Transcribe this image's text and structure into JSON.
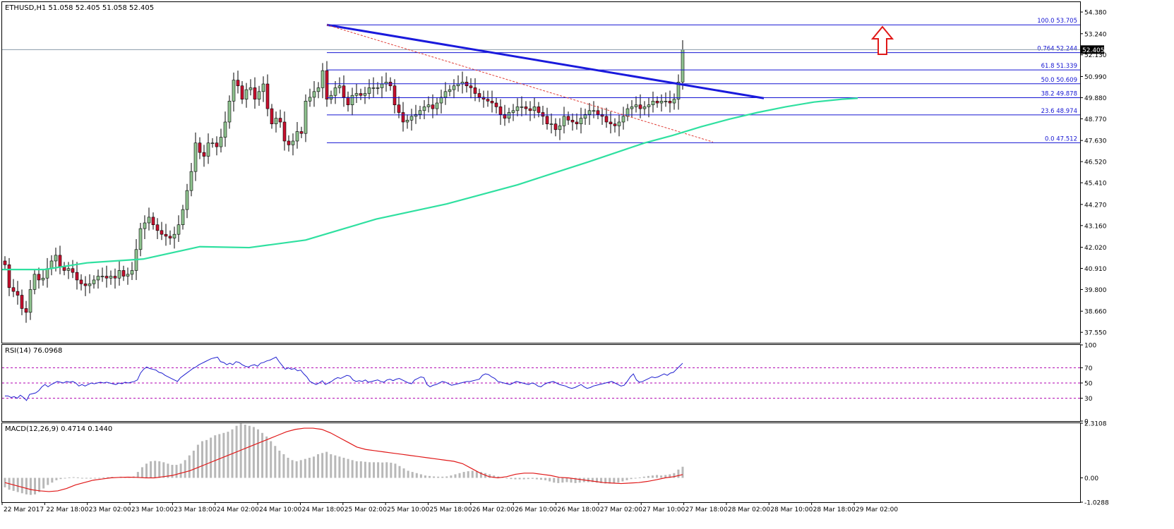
{
  "colors": {
    "background": "#ffffff",
    "frame": "#000000",
    "bull_candle": "#90c490",
    "bear_candle": "#c8102e",
    "ma_line": "#2fe0a0",
    "fib_line": "#1414d2",
    "trendline": "#1a1adc",
    "dashed_trend": "#e0403a",
    "arrow": "#e01818",
    "rsi_line": "#1f1fd0",
    "rsi_levels": "#b000b0",
    "macd_hist": "#b8b8b8",
    "macd_signal": "#e01818",
    "price_tag_bg": "#000000",
    "price_tag_text": "#ffffff"
  },
  "chart_data": [
    {
      "type": "candlestick",
      "title": "ETHUSD,H1  51.058 52.405 51.058 52.405",
      "ylim": [
        37.0,
        54.9
      ],
      "y_ticks": [
        "54.380",
        "53.240",
        "52.130",
        "50.990",
        "49.880",
        "48.770",
        "47.630",
        "46.520",
        "45.410",
        "44.270",
        "43.160",
        "42.020",
        "40.910",
        "39.800",
        "38.660",
        "37.550"
      ],
      "x_ticks": [
        "22 Mar 2017",
        "22 Mar 18:00",
        "23 Mar 02:00",
        "23 Mar 10:00",
        "23 Mar 18:00",
        "24 Mar 02:00",
        "24 Mar 10:00",
        "24 Mar 18:00",
        "25 Mar 02:00",
        "25 Mar 10:00",
        "25 Mar 18:00",
        "26 Mar 02:00",
        "26 Mar 10:00",
        "26 Mar 18:00",
        "27 Mar 02:00",
        "27 Mar 10:00",
        "27 Mar 18:00",
        "28 Mar 02:00",
        "28 Mar 10:00",
        "28 Mar 18:00",
        "29 Mar 02:00"
      ],
      "current_price": "52.405",
      "close_series": [
        41.1,
        39.9,
        39.7,
        39.5,
        38.8,
        38.6,
        39.8,
        40.6,
        40.3,
        40.4,
        40.9,
        41.3,
        41.6,
        41.0,
        40.8,
        40.9,
        40.7,
        40.3,
        40.1,
        40.0,
        40.1,
        40.3,
        40.5,
        40.5,
        40.4,
        40.5,
        40.4,
        40.8,
        40.5,
        40.6,
        40.8,
        41.9,
        43.0,
        43.3,
        43.6,
        43.2,
        42.9,
        42.7,
        42.6,
        42.5,
        42.7,
        43.2,
        44.0,
        45.0,
        46.0,
        47.5,
        47.0,
        46.8,
        47.5,
        47.5,
        47.3,
        47.8,
        48.6,
        49.7,
        50.8,
        50.5,
        49.8,
        50.3,
        50.4,
        49.8,
        50.2,
        50.6,
        49.3,
        48.5,
        48.8,
        48.6,
        47.6,
        47.4,
        47.6,
        48.1,
        48.0,
        49.7,
        49.9,
        50.2,
        50.4,
        51.3,
        49.8,
        50.0,
        50.4,
        50.5,
        49.9,
        49.5,
        50.0,
        50.1,
        50.0,
        50.1,
        50.4,
        50.4,
        50.4,
        50.6,
        50.7,
        50.5,
        49.5,
        49.1,
        48.6,
        48.7,
        48.9,
        49.0,
        49.2,
        49.4,
        49.5,
        49.3,
        49.6,
        49.9,
        50.2,
        50.3,
        50.5,
        50.6,
        50.7,
        50.5,
        50.4,
        50.1,
        49.9,
        49.8,
        49.7,
        49.6,
        49.4,
        49.0,
        48.8,
        49.1,
        49.2,
        49.4,
        49.4,
        49.3,
        49.2,
        49.4,
        49.1,
        48.9,
        48.5,
        48.5,
        48.2,
        48.4,
        48.9,
        48.7,
        48.6,
        48.5,
        48.8,
        49.0,
        49.2,
        49.2,
        49.0,
        48.9,
        48.6,
        48.5,
        48.4,
        48.6,
        48.9,
        49.3,
        49.4,
        49.5,
        49.3,
        49.4,
        49.5,
        49.7,
        49.6,
        49.7,
        49.7,
        49.6,
        49.8,
        50.7,
        52.4
      ],
      "ma_line": [
        [
          0,
          40.85
        ],
        [
          60,
          40.85
        ],
        [
          120,
          41.2
        ],
        [
          200,
          41.4
        ],
        [
          280,
          42.05
        ],
        [
          350,
          42.0
        ],
        [
          430,
          42.4
        ],
        [
          480,
          42.95
        ],
        [
          530,
          43.5
        ],
        [
          580,
          43.9
        ],
        [
          630,
          44.3
        ],
        [
          680,
          44.8
        ],
        [
          730,
          45.3
        ],
        [
          780,
          45.9
        ],
        [
          830,
          46.5
        ],
        [
          870,
          47.0
        ],
        [
          910,
          47.5
        ],
        [
          950,
          47.9
        ],
        [
          990,
          48.35
        ],
        [
          1030,
          48.75
        ],
        [
          1070,
          49.1
        ],
        [
          1110,
          49.4
        ],
        [
          1150,
          49.65
        ],
        [
          1190,
          49.8
        ],
        [
          1212,
          49.85
        ]
      ],
      "fibonacci": [
        {
          "level_label": "100.0",
          "price_label": "53.705",
          "price": 53.705
        },
        {
          "level_label": "0.764",
          "price_label": "52.244",
          "price": 52.244
        },
        {
          "level_label": "61.8",
          "price_label": "51.339",
          "price": 51.339
        },
        {
          "level_label": "50.0",
          "price_label": "50.609",
          "price": 50.609
        },
        {
          "level_label": "38.2",
          "price_label": "49.878",
          "price": 49.878
        },
        {
          "level_label": "23.6",
          "price_label": "48.974",
          "price": 48.974
        },
        {
          "level_label": "0.0",
          "price_label": "47.512",
          "price": 47.512
        }
      ],
      "trendline": {
        "from_price": 53.705,
        "to_price": 49.85
      },
      "dashed_trend": {
        "from_price": 53.705,
        "to_price": 47.55
      },
      "annotation": "upward arrow (bullish breakout)"
    },
    {
      "type": "line",
      "title": "RSI(14) 76.0968",
      "ylim": [
        0,
        100
      ],
      "y_ticks": [
        "100",
        "70",
        "50",
        "30",
        "0"
      ],
      "levels": [
        70,
        50,
        30
      ],
      "values": [
        33,
        33,
        31,
        32,
        30,
        34,
        31,
        27,
        35,
        36,
        37,
        40,
        45,
        48,
        45,
        48,
        50,
        52,
        51,
        50,
        52,
        51,
        52,
        50,
        46,
        48,
        46,
        48,
        50,
        49,
        50,
        51,
        50,
        51,
        50,
        49,
        48,
        50,
        49,
        51,
        50,
        51,
        52,
        54,
        63,
        68,
        71,
        69,
        68,
        67,
        64,
        63,
        60,
        58,
        56,
        54,
        52,
        57,
        60,
        63,
        66,
        69,
        71,
        74,
        76,
        78,
        80,
        82,
        83,
        84,
        78,
        77,
        74,
        76,
        74,
        78,
        77,
        74,
        72,
        71,
        73,
        74,
        72,
        76,
        77,
        79,
        80,
        82,
        84,
        78,
        73,
        68,
        70,
        68,
        69,
        66,
        67,
        62,
        58,
        52,
        50,
        48,
        50,
        53,
        48,
        50,
        52,
        55,
        57,
        56,
        58,
        60,
        59,
        54,
        52,
        53,
        52,
        54,
        51,
        52,
        53,
        54,
        52,
        51,
        54,
        55,
        53,
        55,
        56,
        54,
        52,
        50,
        49,
        54,
        56,
        58,
        57,
        48,
        45,
        47,
        48,
        50,
        52,
        51,
        49,
        47,
        48,
        49,
        50,
        51,
        52,
        52,
        53,
        54,
        55,
        60,
        62,
        61,
        58,
        56,
        52,
        51,
        50,
        49,
        48,
        50,
        52,
        51,
        50,
        49,
        48,
        50,
        49,
        46,
        45,
        48,
        50,
        51,
        52,
        50,
        48,
        47,
        46,
        44,
        43,
        44,
        46,
        48,
        45,
        43,
        44,
        46,
        47,
        48,
        49,
        50,
        51,
        52,
        50,
        48,
        46,
        47,
        52,
        58,
        62,
        54,
        51,
        52,
        54,
        56,
        58,
        57,
        58,
        60,
        62,
        60,
        63,
        64,
        68,
        72,
        76
      ]
    },
    {
      "type": "bar",
      "title": "MACD(12,26,9) 0.4714 0.1440",
      "ylim": [
        -1.0288,
        2.3108
      ],
      "y_ticks": [
        "2.3108",
        "0.00",
        "-1.0288"
      ],
      "histogram": [
        -0.4,
        -0.5,
        -0.55,
        -0.6,
        -0.65,
        -0.7,
        -0.72,
        -0.7,
        -0.6,
        -0.45,
        -0.3,
        -0.2,
        -0.1,
        -0.05,
        0.0,
        0.02,
        0.03,
        0.02,
        0.0,
        -0.02,
        -0.03,
        -0.02,
        0.0,
        0.02,
        0.03,
        0.04,
        0.03,
        0.05,
        0.03,
        0.04,
        0.06,
        0.25,
        0.45,
        0.6,
        0.7,
        0.72,
        0.7,
        0.66,
        0.6,
        0.55,
        0.55,
        0.6,
        0.75,
        0.95,
        1.15,
        1.4,
        1.55,
        1.6,
        1.7,
        1.8,
        1.85,
        1.9,
        1.95,
        2.05,
        2.2,
        2.3,
        2.25,
        2.2,
        2.15,
        2.05,
        1.9,
        1.75,
        1.55,
        1.35,
        1.15,
        1.0,
        0.85,
        0.75,
        0.7,
        0.75,
        0.8,
        0.85,
        0.9,
        1.0,
        1.05,
        1.1,
        1.0,
        0.95,
        0.9,
        0.85,
        0.8,
        0.75,
        0.7,
        0.7,
        0.68,
        0.66,
        0.66,
        0.66,
        0.65,
        0.66,
        0.64,
        0.6,
        0.5,
        0.4,
        0.3,
        0.25,
        0.2,
        0.15,
        0.1,
        0.08,
        0.06,
        0.05,
        0.05,
        0.06,
        0.1,
        0.15,
        0.2,
        0.25,
        0.28,
        0.3,
        0.28,
        0.25,
        0.2,
        0.15,
        0.1,
        0.06,
        0.03,
        0.0,
        -0.05,
        -0.06,
        -0.06,
        -0.06,
        -0.05,
        -0.04,
        -0.06,
        -0.08,
        -0.1,
        -0.15,
        -0.2,
        -0.22,
        -0.2,
        -0.18,
        -0.2,
        -0.22,
        -0.2,
        -0.18,
        -0.18,
        -0.18,
        -0.2,
        -0.22,
        -0.24,
        -0.24,
        -0.22,
        -0.2,
        -0.15,
        -0.1,
        -0.05,
        0.0,
        0.02,
        0.05,
        0.08,
        0.1,
        0.12,
        0.1,
        0.12,
        0.15,
        0.2,
        0.35,
        0.47
      ],
      "signal": [
        -0.2,
        -0.3,
        -0.4,
        -0.5,
        -0.55,
        -0.58,
        -0.55,
        -0.45,
        -0.3,
        -0.2,
        -0.1,
        -0.05,
        0.0,
        0.02,
        0.03,
        0.02,
        0.0,
        0.0,
        0.05,
        0.1,
        0.2,
        0.3,
        0.45,
        0.6,
        0.75,
        0.9,
        1.05,
        1.2,
        1.35,
        1.5,
        1.65,
        1.8,
        1.95,
        2.05,
        2.1,
        2.1,
        2.05,
        1.9,
        1.7,
        1.5,
        1.3,
        1.2,
        1.15,
        1.1,
        1.05,
        1.0,
        0.95,
        0.9,
        0.85,
        0.8,
        0.75,
        0.7,
        0.6,
        0.4,
        0.2,
        0.05,
        0.0,
        0.05,
        0.15,
        0.2,
        0.2,
        0.15,
        0.1,
        0.02,
        0.0,
        -0.05,
        -0.1,
        -0.15,
        -0.2,
        -0.22,
        -0.24,
        -0.22,
        -0.2,
        -0.15,
        -0.08,
        0.0,
        0.05,
        0.14
      ]
    }
  ]
}
